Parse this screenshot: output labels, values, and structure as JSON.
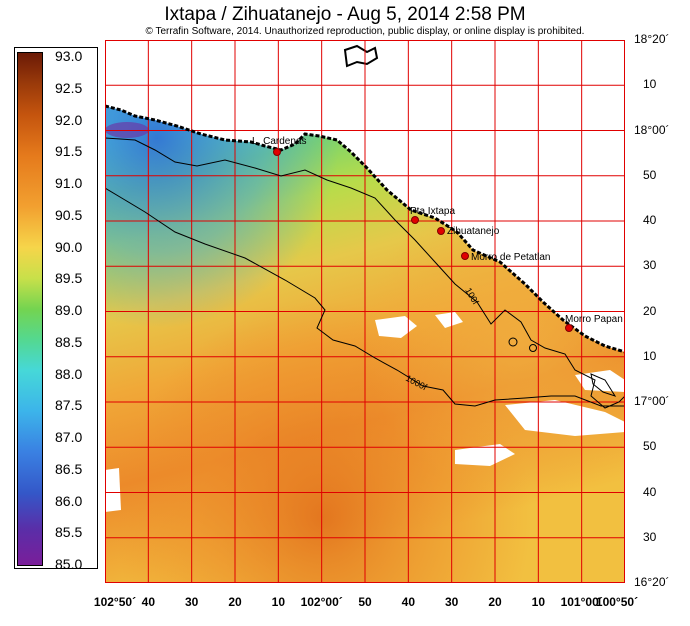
{
  "title": "Ixtapa / Zihuatanejo - Aug 5, 2014 2:58 PM",
  "copyright": "© Terrafin Software,  2014.  Unauthorized reproduction, public display, or online display is prohibited.",
  "colorbar": {
    "labels": [
      "93.0",
      "92.5",
      "92.0",
      "91.5",
      "91.0",
      "90.5",
      "90.0",
      "89.5",
      "89.0",
      "88.5",
      "88.0",
      "87.5",
      "87.0",
      "86.5",
      "86.0",
      "85.5",
      "85.0"
    ],
    "min": 85.0,
    "max": 93.0
  },
  "latitude_labels": [
    "18°20´",
    "10",
    "18°00´",
    "50",
    "40",
    "30",
    "20",
    "10",
    "17°00´",
    "50",
    "40",
    "30",
    "16°20´"
  ],
  "longitude_labels": [
    "102°50´",
    "40",
    "30",
    "20",
    "10",
    "102°00´",
    "50",
    "40",
    "30",
    "20",
    "10",
    "101°00´",
    "100°50´"
  ],
  "places": [
    {
      "name": "L. Cardenas"
    },
    {
      "name": "Pta Ixtapa"
    },
    {
      "name": "Zihuatanejo"
    },
    {
      "name": "Morro de Petatlan"
    },
    {
      "name": "Morro Papan"
    }
  ],
  "contours": [
    {
      "label": "100f"
    },
    {
      "label": "1000f"
    }
  ],
  "colors": {
    "grid": "#e00000",
    "coast": "#000000",
    "place_marker": "#e00000"
  }
}
